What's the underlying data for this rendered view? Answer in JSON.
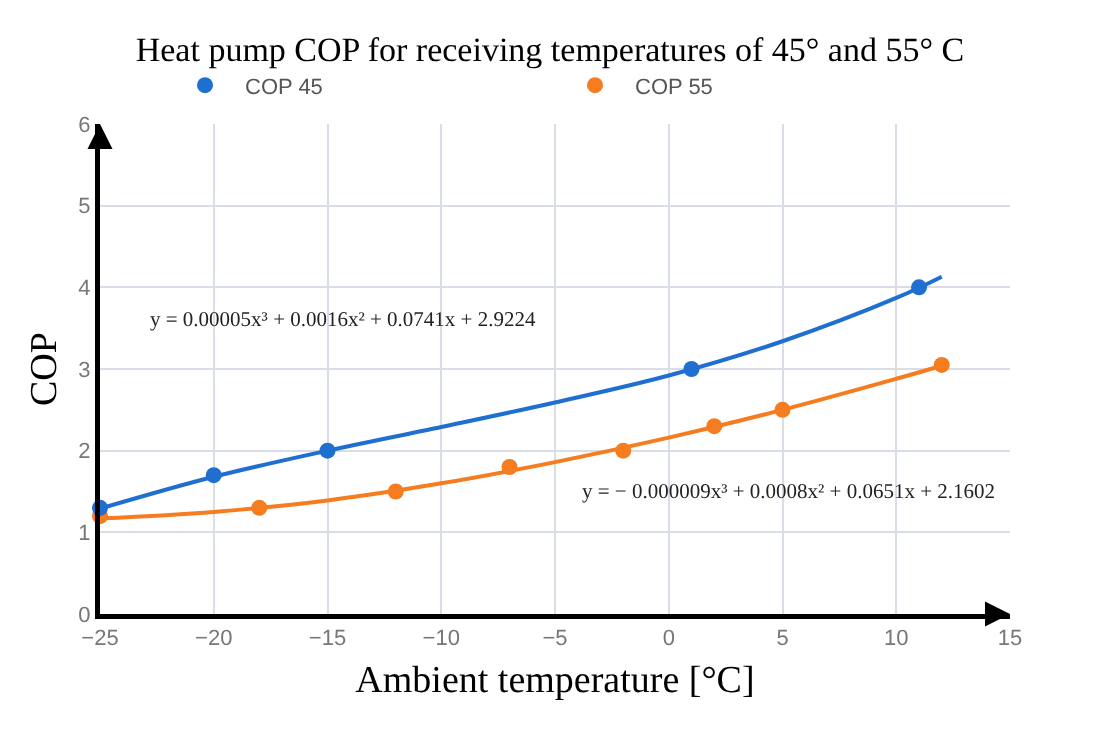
{
  "chart_data": {
    "type": "scatter",
    "title": "Heat pump COP for receiving temperatures of 45° and 55° C",
    "xlabel": "Ambient temperature [°C]",
    "ylabel": "COP",
    "annotations": [
      "y = 0.00005x³ + 0.0016x² + 0.0741x + 2.9224",
      "y = − 0.000009x³ + 0.0008x² + 0.0651x + 2.1602"
    ],
    "series": [
      {
        "name": "COP 45",
        "color": "#1f6fd0",
        "type": "scatter",
        "marker": "circle",
        "x": [
          -25,
          -20,
          -15,
          1,
          11
        ],
        "values": [
          1.3,
          1.7,
          2.0,
          3.0,
          4.0
        ]
      },
      {
        "name": "COP 55",
        "color": "#f57c1f",
        "type": "scatter",
        "marker": "circle",
        "x": [
          -25,
          -18,
          -12,
          -7,
          -2,
          2,
          5,
          12
        ],
        "values": [
          1.2,
          1.3,
          1.5,
          1.8,
          2.0,
          2.3,
          2.5,
          3.05
        ]
      },
      {
        "color": "#1f6fd0",
        "type": "line",
        "marker": "none",
        "line_style": "solid",
        "x": [
          -25,
          -20,
          -15,
          -10,
          -5,
          0,
          5,
          10,
          12
        ],
        "values": [
          1.29,
          1.68,
          2.0,
          2.29,
          2.59,
          2.92,
          3.34,
          3.87,
          4.13
        ]
      },
      {
        "color": "#f57c1f",
        "type": "line",
        "marker": "none",
        "line_style": "solid",
        "x": [
          -25,
          -20,
          -15,
          -10,
          -5,
          0,
          5,
          10,
          12
        ],
        "values": [
          1.17,
          1.25,
          1.39,
          1.6,
          1.86,
          2.16,
          2.5,
          2.88,
          3.04
        ]
      }
    ],
    "xlim": [
      -25,
      15
    ],
    "xticks": [
      -25,
      -20,
      -15,
      -10,
      -5,
      0,
      5,
      10,
      15
    ],
    "ylim": [
      0,
      6
    ],
    "yticks": [
      0,
      1,
      2,
      3,
      4,
      5,
      6
    ],
    "grid": true,
    "legend": "top"
  }
}
